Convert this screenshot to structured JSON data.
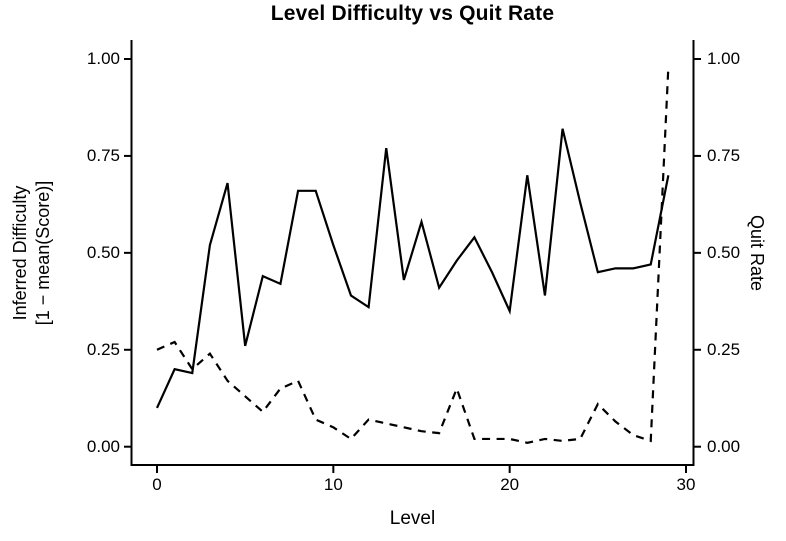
{
  "title": "Level Difficulty vs Quit Rate",
  "axes": {
    "x": {
      "label": "Level",
      "tick_labels": [
        "0",
        "10",
        "20",
        "30"
      ],
      "tick_values": [
        0,
        10,
        20,
        30
      ]
    },
    "y_left": {
      "label_line1": "Inferred Difficulty",
      "label_line2": "[1 − mean(Score)]",
      "tick_labels": [
        "0.00",
        "0.25",
        "0.50",
        "0.75",
        "1.00"
      ],
      "tick_values": [
        0,
        0.25,
        0.5,
        0.75,
        1.0
      ]
    },
    "y_right": {
      "label": "Quit Rate",
      "tick_labels": [
        "0.00",
        "0.25",
        "0.50",
        "0.75",
        "1.00"
      ],
      "tick_values": [
        0,
        0.25,
        0.5,
        0.75,
        1.0
      ]
    }
  },
  "chart_data": {
    "type": "line",
    "title": "Level Difficulty vs Quit Rate",
    "xlabel": "Level",
    "ylabel_left": "Inferred Difficulty [1 − mean(Score)]",
    "ylabel_right": "Quit Rate",
    "x": [
      0,
      1,
      2,
      3,
      4,
      5,
      6,
      7,
      8,
      9,
      10,
      11,
      12,
      13,
      14,
      15,
      16,
      17,
      18,
      19,
      20,
      21,
      22,
      23,
      24,
      25,
      26,
      27,
      28,
      29
    ],
    "series": [
      {
        "name": "Inferred Difficulty",
        "axis": "left",
        "style": "solid",
        "values": [
          0.1,
          0.2,
          0.19,
          0.52,
          0.68,
          0.26,
          0.44,
          0.42,
          0.66,
          0.66,
          0.52,
          0.39,
          0.36,
          0.77,
          0.43,
          0.58,
          0.41,
          0.48,
          0.54,
          0.45,
          0.35,
          0.7,
          0.39,
          0.82,
          0.63,
          0.45,
          0.46,
          0.46,
          0.47,
          0.7
        ]
      },
      {
        "name": "Quit Rate",
        "axis": "right",
        "style": "dashed",
        "values": [
          0.25,
          0.27,
          0.2,
          0.24,
          0.17,
          0.13,
          0.09,
          0.15,
          0.17,
          0.07,
          0.05,
          0.02,
          0.07,
          0.06,
          0.05,
          0.04,
          0.035,
          0.15,
          0.02,
          0.02,
          0.02,
          0.01,
          0.02,
          0.015,
          0.02,
          0.11,
          0.065,
          0.03,
          0.015,
          0.98
        ]
      }
    ],
    "xlim": [
      -1.45,
      30.3
    ],
    "ylim": [
      -0.05,
      1.05
    ],
    "grid": false,
    "legend": "none",
    "line_color": "#000000",
    "background_color": "#ffffff"
  }
}
